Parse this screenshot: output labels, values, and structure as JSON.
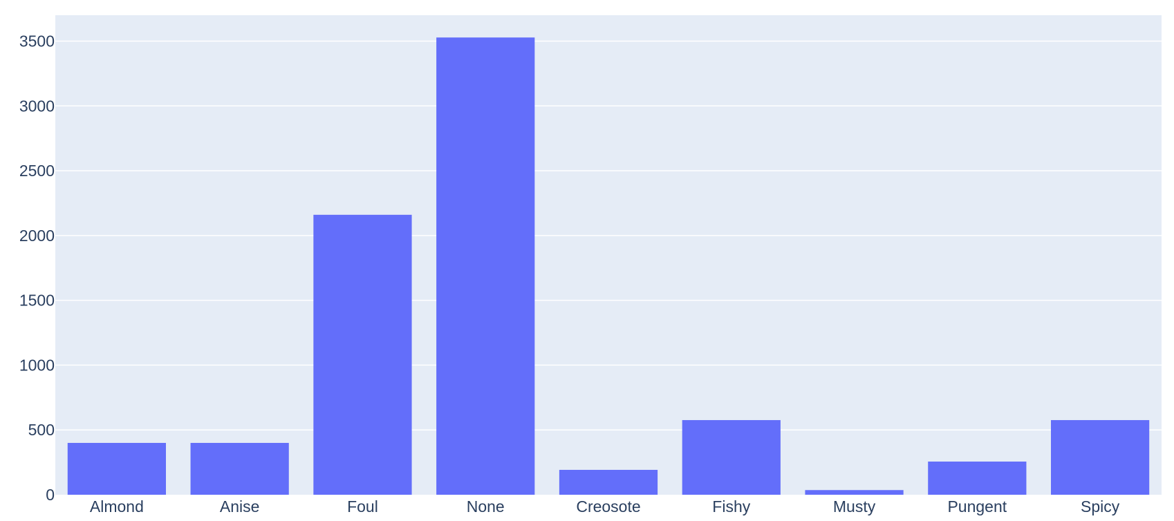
{
  "chart_data": {
    "type": "bar",
    "title": "",
    "xlabel": "",
    "ylabel": "",
    "categories": [
      "Almond",
      "Anise",
      "Foul",
      "None",
      "Creosote",
      "Fishy",
      "Musty",
      "Pungent",
      "Spicy"
    ],
    "values": [
      400,
      400,
      2160,
      3528,
      192,
      576,
      36,
      256,
      576
    ],
    "ylim": [
      0,
      3700
    ],
    "yticks": [
      0,
      500,
      1000,
      1500,
      2000,
      2500,
      3000,
      3500
    ],
    "grid": true,
    "legend": "none",
    "colors": {
      "bar": "#636efa",
      "plot_background": "#e5ecf6",
      "grid": "#ffffff",
      "text": "#2a3f5f"
    }
  }
}
